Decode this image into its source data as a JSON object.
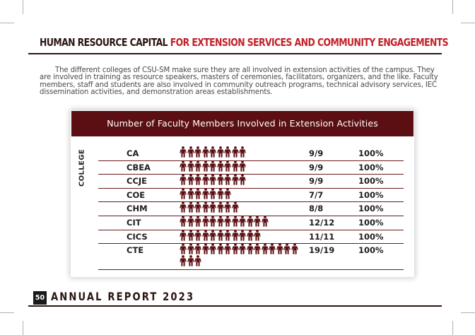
{
  "title": {
    "part_dark": "HUMAN RESOURCE CAPITAL",
    "part_red": "FOR EXTENSION SERVICES AND COMMUNITY ENGAGEMENTS"
  },
  "intro": "The different colleges of CSU-SM make sure they are all involved in extension activities of the campus. They are involved in training as resource speakers, masters of ceremonies, facilitators, organizers, and the like. Faculty members, staff and students are also involved in community outreach programs, technical advisory services, IEC dissemination activities, and demonstration areas establishments.",
  "colors": {
    "maroon": "#5b0f12",
    "title_red": "#c2212a",
    "icon": "#5b0f12",
    "dark": "#2b1512"
  },
  "chart_data": {
    "type": "table",
    "title": "Number of Faculty Members Involved in Extension Activities",
    "row_axis_label": "COLLEGE",
    "icon": "person-icon",
    "rows": [
      {
        "college": "CA",
        "involved": 9,
        "total": 9,
        "fraction": "9/9",
        "percent": "100%"
      },
      {
        "college": "CBEA",
        "involved": 9,
        "total": 9,
        "fraction": "9/9",
        "percent": "100%"
      },
      {
        "college": "CCJE",
        "involved": 9,
        "total": 9,
        "fraction": "9/9",
        "percent": "100%"
      },
      {
        "college": "COE",
        "involved": 7,
        "total": 7,
        "fraction": "7/7",
        "percent": "100%"
      },
      {
        "college": "CHM",
        "involved": 8,
        "total": 8,
        "fraction": "8/8",
        "percent": "100%"
      },
      {
        "college": "CIT",
        "involved": 12,
        "total": 12,
        "fraction": "12/12",
        "percent": "100%"
      },
      {
        "college": "CICS",
        "involved": 11,
        "total": 11,
        "fraction": "11/11",
        "percent": "100%"
      },
      {
        "college": "CTE",
        "involved": 19,
        "total": 19,
        "fraction": "19/19",
        "percent": "100%"
      }
    ]
  },
  "footer": {
    "page_number": "50",
    "report_title": "ANNUAL REPORT 2023"
  }
}
